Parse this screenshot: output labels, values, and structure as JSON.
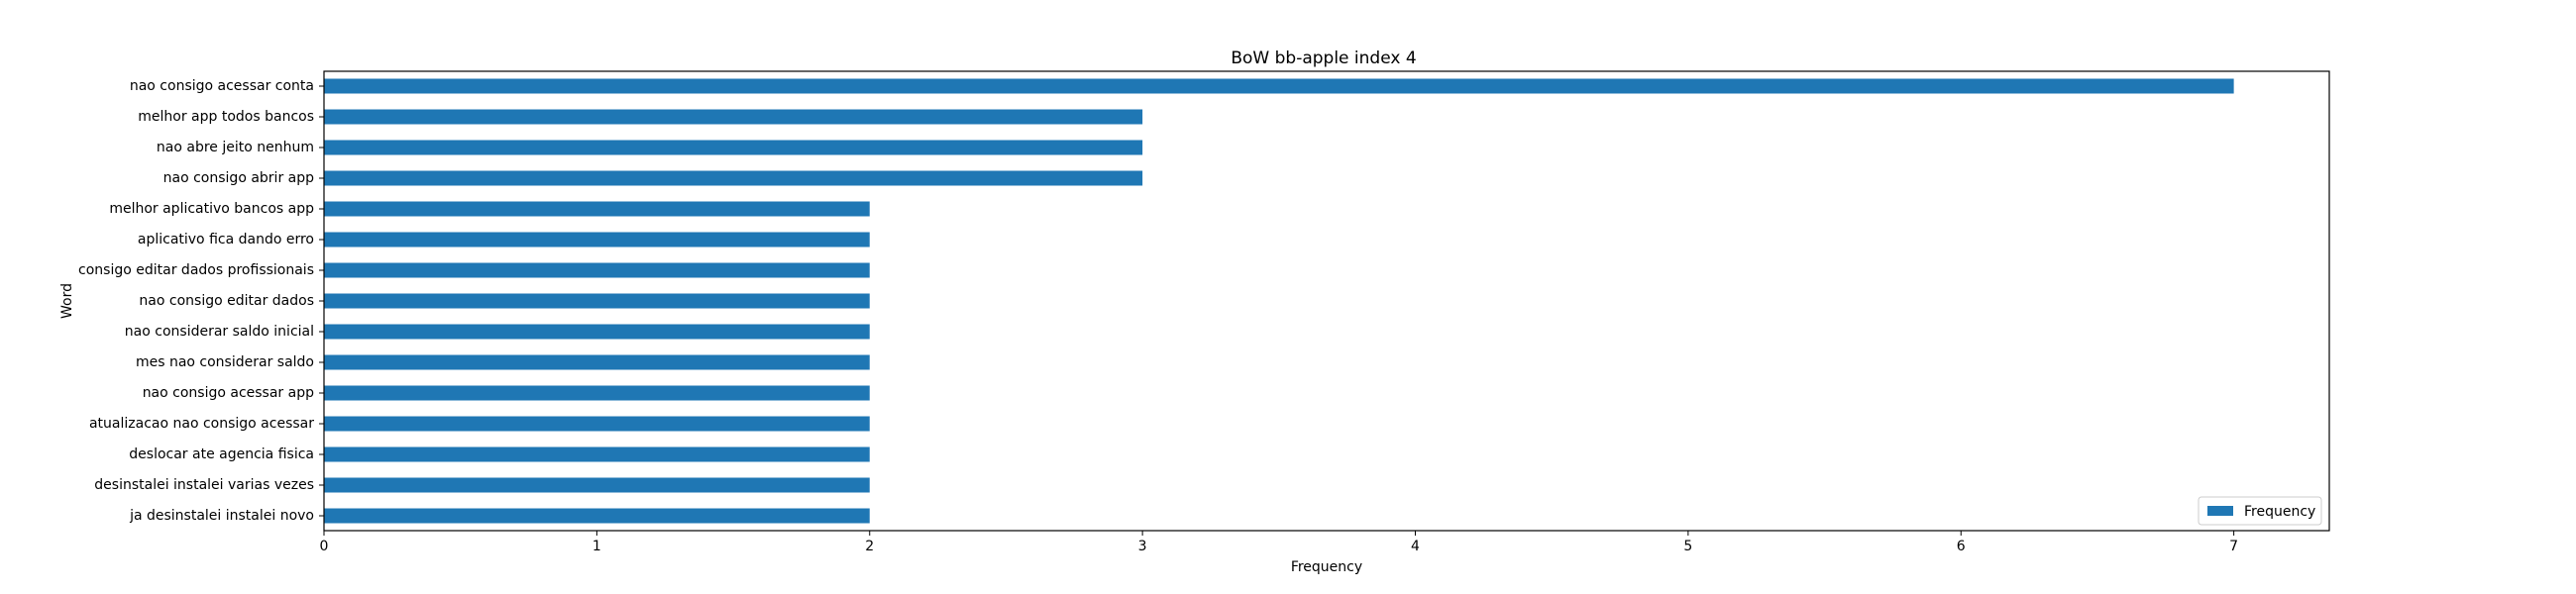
{
  "chart_data": {
    "type": "bar",
    "orientation": "horizontal",
    "title": "BoW bb-apple index 4",
    "xlabel": "Frequency",
    "ylabel": "Word",
    "xlim": [
      0,
      7.35
    ],
    "xticks": [
      0,
      1,
      2,
      3,
      4,
      5,
      6,
      7
    ],
    "grid": false,
    "legend_position": "bottom-right",
    "bar_color": "#1f77b4",
    "categories": [
      "nao consigo acessar conta",
      "melhor app todos bancos",
      "nao abre jeito nenhum",
      "nao consigo abrir app",
      "melhor aplicativo bancos app",
      "aplicativo fica dando erro",
      "consigo editar dados profissionais",
      "nao consigo editar dados",
      "nao considerar saldo inicial",
      "mes nao considerar saldo",
      "nao consigo acessar app",
      "atualizacao nao consigo acessar",
      "deslocar ate agencia fisica",
      "desinstalei instalei varias vezes",
      "ja desinstalei instalei novo"
    ],
    "series": [
      {
        "name": "Frequency",
        "values": [
          7,
          3,
          3,
          3,
          2,
          2,
          2,
          2,
          2,
          2,
          2,
          2,
          2,
          2,
          2
        ]
      }
    ]
  }
}
